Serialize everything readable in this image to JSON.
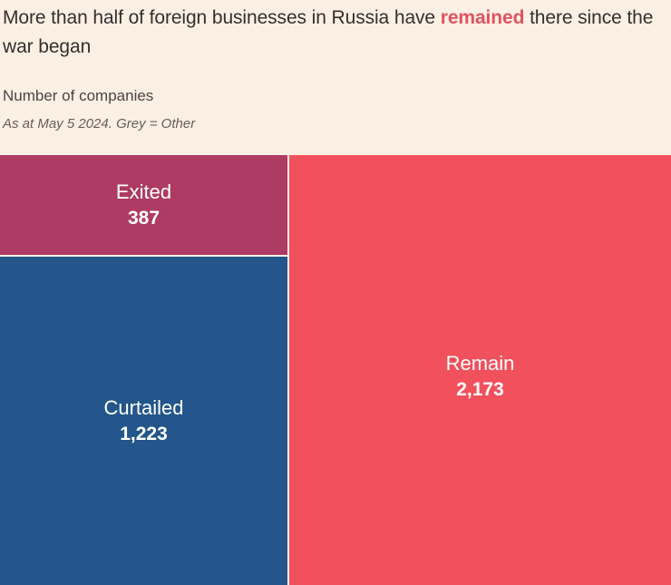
{
  "header": {
    "title_before": "More than half of foreign businesses in Russia have ",
    "title_highlight": "remained",
    "title_after": " there since the war began",
    "subtitle": "Number of companies",
    "note": "As at May 5 2024. Grey = Other"
  },
  "colors": {
    "background": "#FCEFE4",
    "title_text": "#33302E",
    "highlight_text": "#E0545E",
    "subtitle_text": "#4A4542",
    "note_text": "#655F5B",
    "block_label_text": "#FFFFFF",
    "exited_block": "#AE3B63",
    "curtailed_block": "#24568B",
    "remain_block": "#F1515C"
  },
  "chart_data": {
    "type": "treemap",
    "title": "More than half of foreign businesses in Russia have remained there since the war began",
    "subtitle": "Number of companies",
    "note": "As at May 5 2024. Grey = Other",
    "unit": "companies",
    "total": 3783,
    "items": [
      {
        "label": "Exited",
        "value": 387,
        "value_label": "387",
        "color": "#AE3B63",
        "share_pct": 10.2
      },
      {
        "label": "Curtailed",
        "value": 1223,
        "value_label": "1,223",
        "color": "#24568B",
        "share_pct": 32.3
      },
      {
        "label": "Remain",
        "value": 2173,
        "value_label": "2,173",
        "color": "#F1515C",
        "share_pct": 57.4
      }
    ]
  }
}
